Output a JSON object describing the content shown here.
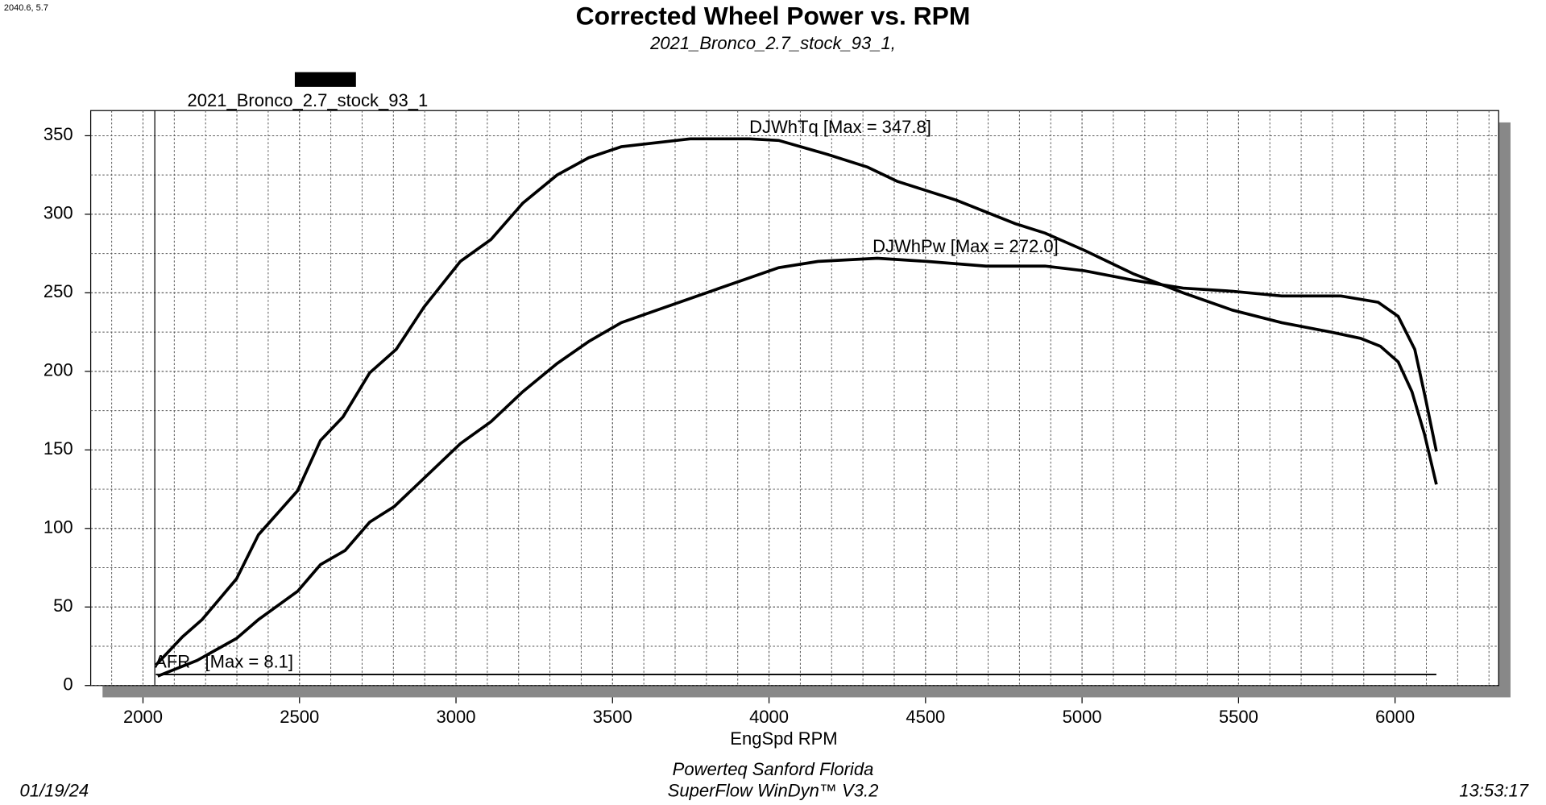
{
  "cursor_readout": "2040.6, 5.7",
  "chart_data": {
    "type": "line",
    "title": "Corrected Wheel Power vs. RPM",
    "subtitle": "2021_Bronco_2.7_stock_93_1,",
    "legend_label": "2021_Bronco_2.7_stock_93_1",
    "x_label": "EngSpd RPM",
    "xlim": [
      1833,
      6331
    ],
    "ylim": [
      0,
      366
    ],
    "xticks": [
      2000,
      2500,
      3000,
      3500,
      4000,
      4500,
      5000,
      5500,
      6000
    ],
    "yticks": [
      0,
      50,
      100,
      150,
      200,
      250,
      300,
      350
    ],
    "grid": true,
    "series": [
      {
        "label": "DJWhTq [Max = 347.8]",
        "color": "#000000",
        "x": [
          2041,
          2126,
          2189,
          2299,
          2369,
          2494,
          2567,
          2639,
          2724,
          2809,
          2898,
          3014,
          3112,
          3213,
          3323,
          3424,
          3528,
          3748,
          3937,
          4031,
          4189,
          4315,
          4409,
          4598,
          4787,
          4882,
          5008,
          5165,
          5323,
          5480,
          5638,
          5795,
          5890,
          5953,
          6010,
          6054,
          6094,
          6132
        ],
        "values": [
          13,
          31,
          42,
          68,
          96,
          124,
          156,
          171,
          199,
          214,
          241,
          270,
          284,
          307,
          325,
          336,
          343,
          348,
          348,
          347,
          338,
          330,
          321,
          309,
          294,
          288,
          277,
          262,
          250,
          239,
          231,
          225,
          221,
          216,
          206,
          187,
          160,
          128
        ]
      },
      {
        "label": "DJWhPw [Max = 272.0]",
        "color": "#000000",
        "x": [
          2047,
          2173,
          2299,
          2369,
          2494,
          2567,
          2646,
          2724,
          2803,
          2898,
          3014,
          3112,
          3213,
          3323,
          3424,
          3528,
          3685,
          3843,
          4031,
          4157,
          4346,
          4504,
          4693,
          4882,
          5008,
          5165,
          5323,
          5480,
          5638,
          5827,
          5946,
          6010,
          6063,
          6098,
          6132
        ],
        "values": [
          6,
          16,
          30,
          42,
          60,
          77,
          86,
          104,
          114,
          132,
          154,
          168,
          187,
          205,
          219,
          231,
          242,
          253,
          266,
          270,
          272,
          270,
          267,
          267,
          264,
          258,
          253,
          251,
          248,
          248,
          244,
          235,
          214,
          182,
          149
        ]
      },
      {
        "label": "AFR   [Max = 8.1]",
        "color": "#000000",
        "x": [
          2041,
          6132
        ],
        "values": [
          7,
          7
        ]
      }
    ]
  },
  "footer": {
    "date": "01/19/24",
    "location": "Powerteq Sanford Florida",
    "software": "SuperFlow WinDyn™ V3.2",
    "time": "13:53:17"
  }
}
